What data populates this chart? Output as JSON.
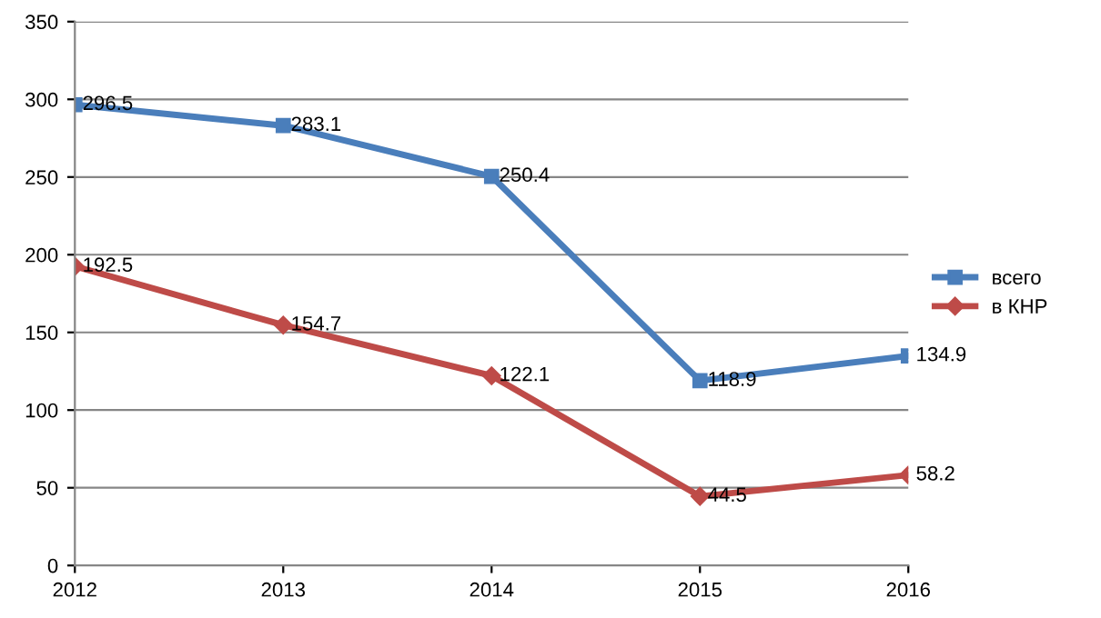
{
  "chart_data": {
    "type": "line",
    "x": [
      2012,
      2013,
      2014,
      2015,
      2016
    ],
    "series": [
      {
        "name": "всего",
        "color": "#4a7ebb",
        "marker": "square",
        "values": [
          296.5,
          283.1,
          250.4,
          118.9,
          134.9
        ]
      },
      {
        "name": "в КНР",
        "color": "#be4b48",
        "marker": "diamond",
        "values": [
          192.5,
          154.7,
          122.1,
          44.5,
          58.2
        ]
      }
    ],
    "xlim": [
      2012,
      2016
    ],
    "xticks": [
      2012,
      2013,
      2014,
      2015,
      2016
    ],
    "ylim": [
      0,
      350
    ],
    "yticks": [
      0,
      50,
      100,
      150,
      200,
      250,
      300,
      350
    ],
    "grid": "y",
    "legend": "right",
    "data_labels": true
  }
}
